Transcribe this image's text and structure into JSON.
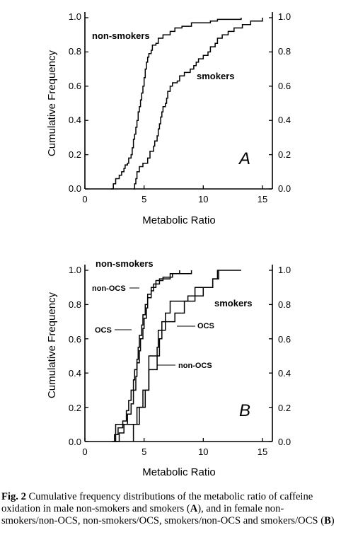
{
  "chart_data": [
    {
      "type": "line",
      "panel_label": "A",
      "xlabel": "Metabolic Ratio",
      "ylabel": "Cumulative Frequency",
      "xlim": [
        0,
        15
      ],
      "ylim": [
        0,
        1.0
      ],
      "x_ticks": [
        "0",
        "5",
        "10",
        "15"
      ],
      "y_ticks": [
        "0.0",
        "0.2",
        "0.4",
        "0.6",
        "0.8",
        "1.0"
      ],
      "series": [
        {
          "name": "non-smokers",
          "points": [
            [
              2.2,
              0
            ],
            [
              2.4,
              0.03
            ],
            [
              2.6,
              0.06
            ],
            [
              2.9,
              0.08
            ],
            [
              3.1,
              0.1
            ],
            [
              3.3,
              0.12
            ],
            [
              3.4,
              0.14
            ],
            [
              3.6,
              0.15
            ],
            [
              3.7,
              0.18
            ],
            [
              3.9,
              0.2
            ],
            [
              4.0,
              0.24
            ],
            [
              4.1,
              0.29
            ],
            [
              4.2,
              0.32
            ],
            [
              4.3,
              0.36
            ],
            [
              4.4,
              0.4
            ],
            [
              4.5,
              0.45
            ],
            [
              4.6,
              0.48
            ],
            [
              4.7,
              0.52
            ],
            [
              4.8,
              0.56
            ],
            [
              4.9,
              0.6
            ],
            [
              5.0,
              0.65
            ],
            [
              5.1,
              0.7
            ],
            [
              5.2,
              0.74
            ],
            [
              5.3,
              0.77
            ],
            [
              5.4,
              0.79
            ],
            [
              5.6,
              0.81
            ],
            [
              5.7,
              0.84
            ],
            [
              6.0,
              0.85
            ],
            [
              6.2,
              0.88
            ],
            [
              6.6,
              0.9
            ],
            [
              7.2,
              0.92
            ],
            [
              7.6,
              0.94
            ],
            [
              8.2,
              0.95
            ],
            [
              9.0,
              0.97
            ],
            [
              10.6,
              0.98
            ],
            [
              11.2,
              0.99
            ],
            [
              13.2,
              1.0
            ]
          ]
        },
        {
          "name": "smokers",
          "points": [
            [
              4.1,
              0
            ],
            [
              4.2,
              0.03
            ],
            [
              4.3,
              0.06
            ],
            [
              4.4,
              0.1
            ],
            [
              4.6,
              0.13
            ],
            [
              4.9,
              0.15
            ],
            [
              5.3,
              0.18
            ],
            [
              5.5,
              0.22
            ],
            [
              5.8,
              0.25
            ],
            [
              5.9,
              0.28
            ],
            [
              6.1,
              0.31
            ],
            [
              6.2,
              0.35
            ],
            [
              6.3,
              0.38
            ],
            [
              6.4,
              0.42
            ],
            [
              6.5,
              0.45
            ],
            [
              6.6,
              0.48
            ],
            [
              6.8,
              0.5
            ],
            [
              6.9,
              0.53
            ],
            [
              7.0,
              0.57
            ],
            [
              7.2,
              0.6
            ],
            [
              7.4,
              0.62
            ],
            [
              7.8,
              0.63
            ],
            [
              8.0,
              0.66
            ],
            [
              8.4,
              0.68
            ],
            [
              8.9,
              0.7
            ],
            [
              9.2,
              0.72
            ],
            [
              9.4,
              0.74
            ],
            [
              9.6,
              0.76
            ],
            [
              10.0,
              0.78
            ],
            [
              10.4,
              0.8
            ],
            [
              10.6,
              0.83
            ],
            [
              11.0,
              0.85
            ],
            [
              11.2,
              0.88
            ],
            [
              11.6,
              0.9
            ],
            [
              12.1,
              0.92
            ],
            [
              12.6,
              0.94
            ],
            [
              13.3,
              0.96
            ],
            [
              14.0,
              0.98
            ],
            [
              15.0,
              1.0
            ]
          ]
        }
      ]
    },
    {
      "type": "line",
      "panel_label": "B",
      "xlabel": "Metabolic Ratio",
      "ylabel": "Cumulative Frequency",
      "xlim": [
        0,
        15
      ],
      "ylim": [
        0,
        1.0
      ],
      "x_ticks": [
        "0",
        "5",
        "10",
        "15"
      ],
      "y_ticks": [
        "0.0",
        "0.2",
        "0.4",
        "0.6",
        "0.8",
        "1.0"
      ],
      "group_labels": [
        "non-smokers",
        "smokers"
      ],
      "series": [
        {
          "name": "non-smokers non-OCS",
          "points": [
            [
              2.3,
              0
            ],
            [
              2.5,
              0.04
            ],
            [
              2.8,
              0.08
            ],
            [
              3.2,
              0.12
            ],
            [
              3.5,
              0.18
            ],
            [
              3.7,
              0.24
            ],
            [
              3.9,
              0.3
            ],
            [
              4.1,
              0.36
            ],
            [
              4.2,
              0.42
            ],
            [
              4.4,
              0.48
            ],
            [
              4.5,
              0.55
            ],
            [
              4.6,
              0.62
            ],
            [
              4.8,
              0.68
            ],
            [
              4.9,
              0.74
            ],
            [
              5.1,
              0.8
            ],
            [
              5.3,
              0.86
            ],
            [
              5.6,
              0.9
            ],
            [
              6.0,
              0.94
            ],
            [
              6.6,
              0.96
            ],
            [
              7.4,
              0.98
            ],
            [
              9.0,
              1.0
            ]
          ]
        },
        {
          "name": "non-smokers OCS",
          "points": [
            [
              2.6,
              0
            ],
            [
              2.9,
              0.05
            ],
            [
              3.3,
              0.1
            ],
            [
              3.6,
              0.16
            ],
            [
              3.9,
              0.22
            ],
            [
              4.1,
              0.3
            ],
            [
              4.3,
              0.38
            ],
            [
              4.4,
              0.46
            ],
            [
              4.6,
              0.53
            ],
            [
              4.7,
              0.6
            ],
            [
              4.9,
              0.66
            ],
            [
              5.0,
              0.72
            ],
            [
              5.2,
              0.78
            ],
            [
              5.3,
              0.84
            ],
            [
              5.6,
              0.88
            ],
            [
              5.8,
              0.92
            ],
            [
              6.3,
              0.95
            ],
            [
              7.2,
              0.98
            ],
            [
              8.0,
              1.0
            ]
          ]
        },
        {
          "name": "smokers OCS",
          "points": [
            [
              2.5,
              0
            ],
            [
              2.6,
              0.1
            ],
            [
              4.0,
              0.1
            ],
            [
              4.4,
              0.2
            ],
            [
              4.9,
              0.3
            ],
            [
              5.4,
              0.42
            ],
            [
              6.1,
              0.55
            ],
            [
              6.2,
              0.65
            ],
            [
              6.8,
              0.75
            ],
            [
              7.2,
              0.82
            ],
            [
              8.7,
              0.85
            ],
            [
              10.0,
              0.9
            ],
            [
              10.8,
              0.95
            ],
            [
              11.3,
              1.0
            ]
          ]
        },
        {
          "name": "smokers non-OCS",
          "points": [
            [
              4.1,
              0
            ],
            [
              4.1,
              0.1
            ],
            [
              4.6,
              0.2
            ],
            [
              5.1,
              0.3
            ],
            [
              5.4,
              0.4
            ],
            [
              5.4,
              0.5
            ],
            [
              6.3,
              0.6
            ],
            [
              6.5,
              0.7
            ],
            [
              7.6,
              0.75
            ],
            [
              8.4,
              0.82
            ],
            [
              9.3,
              0.9
            ],
            [
              10.8,
              0.95
            ],
            [
              11.2,
              1.0
            ],
            [
              13.2,
              1.0
            ]
          ]
        }
      ],
      "annotations": [
        "non-OCS",
        "OCS",
        "OCS",
        "non-OCS"
      ]
    }
  ],
  "caption": {
    "fig_label": "Fig. 2",
    "text_1": " Cumulative frequency distributions of the metabolic ratio of caffeine oxidation in male non-smokers and smokers (",
    "bold_A": "A",
    "text_2": "), and in female non-smokers/non-OCS, non-smokers/OCS, smokers/non-OCS and smokers/OCS (",
    "bold_B": "B",
    "text_3": ")"
  }
}
